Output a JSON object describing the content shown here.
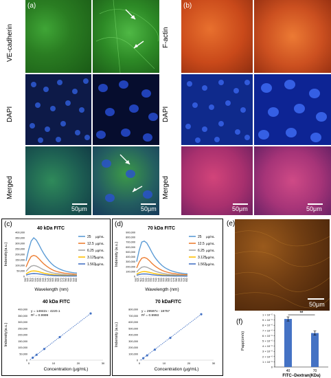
{
  "panel_a": {
    "label": "(a)",
    "rows": [
      "VE-cadherin",
      "DAPI",
      "Merged"
    ],
    "scale_bar_left": "50μm",
    "scale_bar_right": "50μm",
    "colors": {
      "ve": "#2f8a25",
      "dapi": "#1a3fb8",
      "merged": "#2a7050"
    }
  },
  "panel_b": {
    "label": "(b)",
    "rows": [
      "F-actin",
      "DAPI",
      "Merged"
    ],
    "scale_bar_left": "50μm",
    "scale_bar_right": "50μm",
    "colors": {
      "factin": "#d2521c",
      "dapi": "#1e45d0",
      "merged": "#b2357a"
    }
  },
  "panel_c": {
    "label": "(c)"
  },
  "panel_d": {
    "label": "(d)"
  },
  "panel_e": {
    "label": "(e)",
    "scale_bar": "50μm",
    "colors": {
      "bg": "#6a3a10"
    }
  },
  "panel_f": {
    "label": "(f)"
  },
  "chart_data": [
    {
      "id": "c-spectra",
      "type": "line",
      "title": "40 kDa FITC",
      "xlabel": "Wavelength (nm)",
      "ylabel": "Indensity(a.u.)",
      "x": [
        500,
        505,
        510,
        515,
        520,
        525,
        530,
        535,
        540,
        545,
        550,
        555,
        560,
        565,
        570,
        575,
        580,
        585,
        590,
        595,
        600
      ],
      "xticklabels": [
        "500",
        "505",
        "510",
        "515",
        "520",
        "525",
        "530",
        "535",
        "540",
        "545",
        "550",
        "555",
        "560",
        "565",
        "570",
        "575",
        "580",
        "585",
        "590",
        "595",
        "600"
      ],
      "ylim": [
        0,
        400000
      ],
      "yticklabels": [
        "0",
        "50,000",
        "100,000",
        "150,000",
        "200,000",
        "250,000",
        "300,000",
        "350,000",
        "400,000"
      ],
      "series": [
        {
          "name": "25",
          "unit": "μg/mL",
          "color": "#5b9bd5",
          "values": [
            140000,
            240000,
            320000,
            350000,
            330000,
            290000,
            245000,
            205000,
            170000,
            140000,
            115000,
            95000,
            80000,
            68000,
            58000,
            50000,
            44000,
            39000,
            35000,
            32000,
            30000
          ]
        },
        {
          "name": "12.5",
          "unit": "μg/mL",
          "color": "#ed7d31",
          "values": [
            85000,
            140000,
            180000,
            190000,
            182000,
            160000,
            135000,
            112000,
            93000,
            77000,
            63000,
            52000,
            44000,
            38000,
            33000,
            29000,
            26000,
            23000,
            21000,
            19000,
            18000
          ]
        },
        {
          "name": "6.25",
          "unit": "μg/mL",
          "color": "#a5a5a5",
          "values": [
            45000,
            72000,
            92000,
            98000,
            94000,
            83000,
            70000,
            58000,
            48000,
            40000,
            33000,
            28000,
            24000,
            21000,
            18000,
            16000,
            14000,
            13000,
            12000,
            11000,
            10000
          ]
        },
        {
          "name": "3.125",
          "unit": "μg/mL",
          "color": "#ffc000",
          "values": [
            22000,
            36000,
            46000,
            49000,
            47000,
            42000,
            35000,
            29000,
            24000,
            20000,
            17000,
            14000,
            12000,
            10500,
            9000,
            8000,
            7200,
            6500,
            6000,
            5500,
            5000
          ]
        },
        {
          "name": "1.563",
          "unit": "μg/mL",
          "color": "#4472c4",
          "values": [
            11000,
            18000,
            23000,
            25000,
            24000,
            21000,
            18000,
            15000,
            12000,
            10000,
            8500,
            7000,
            6000,
            5300,
            4600,
            4000,
            3600,
            3300,
            3000,
            2800,
            2600
          ]
        }
      ]
    },
    {
      "id": "c-linear",
      "type": "scatter",
      "title": "40 kDa FITC",
      "xlabel": "Concentration (μg/mL)",
      "ylabel": "Indensity(a.u.)",
      "xlim": [
        0,
        30
      ],
      "xticklabels": [
        "0",
        "10",
        "20",
        "30"
      ],
      "ylim": [
        0,
        400000
      ],
      "yticklabels": [
        "0",
        "50,000",
        "100,000",
        "150,000",
        "200,000",
        "250,000",
        "300,000",
        "350,000",
        "400,000"
      ],
      "equation": "y = 14842x - 4220.1",
      "r2": "R² = 0.9999",
      "x": [
        1.563,
        3.125,
        6.25,
        12.5,
        25
      ],
      "y": [
        19000,
        42000,
        88000,
        181000,
        367000
      ],
      "fit": {
        "slope": 14842,
        "intercept": -4220.1
      },
      "color": "#4472c4"
    },
    {
      "id": "d-spectra",
      "type": "line",
      "title": "70 kDa FITC",
      "xlabel": "Wavelength (nm)",
      "ylabel": "Indensity (a.u.)",
      "x": [
        500,
        505,
        510,
        515,
        520,
        525,
        530,
        535,
        540,
        545,
        550,
        555,
        560,
        565,
        570,
        575,
        580,
        585,
        590,
        595,
        600
      ],
      "xticklabels": [
        "500",
        "505",
        "510",
        "515",
        "520",
        "525",
        "530",
        "535",
        "540",
        "545",
        "550",
        "555",
        "560",
        "565",
        "570",
        "575",
        "580",
        "585",
        "590",
        "595",
        "600"
      ],
      "ylim": [
        0,
        900000
      ],
      "yticklabels": [
        "0",
        "100,000",
        "200,000",
        "300,000",
        "400,000",
        "500,000",
        "600,000",
        "700,000",
        "800,000",
        "900,000"
      ],
      "series": [
        {
          "name": "25",
          "unit": "μg/mL",
          "color": "#5b9bd5",
          "values": [
            300000,
            530000,
            700000,
            720000,
            680000,
            590000,
            490000,
            400000,
            330000,
            270000,
            220000,
            180000,
            150000,
            125000,
            105000,
            90000,
            78000,
            68000,
            60000,
            54000,
            50000
          ]
        },
        {
          "name": "12.5",
          "unit": "μg/mL",
          "color": "#ed7d31",
          "values": [
            170000,
            290000,
            370000,
            385000,
            365000,
            320000,
            265000,
            218000,
            180000,
            148000,
            121000,
            100000,
            84000,
            71000,
            61000,
            53000,
            46000,
            41000,
            37000,
            34000,
            32000
          ]
        },
        {
          "name": "6.25",
          "unit": "μg/mL",
          "color": "#a5a5a5",
          "values": [
            85000,
            145000,
            185000,
            195000,
            185000,
            162000,
            135000,
            111000,
            92000,
            76000,
            62000,
            52000,
            44000,
            37000,
            32000,
            28000,
            25000,
            22000,
            20000,
            18500,
            17000
          ]
        },
        {
          "name": "3.125",
          "unit": "μg/mL",
          "color": "#ffc000",
          "values": [
            42000,
            72000,
            92000,
            97000,
            92000,
            81000,
            67000,
            55000,
            46000,
            38000,
            31000,
            26000,
            22000,
            18500,
            16000,
            14000,
            12500,
            11000,
            10000,
            9200,
            8500
          ]
        },
        {
          "name": "1.563",
          "unit": "μg/mL",
          "color": "#4472c4",
          "values": [
            21000,
            36000,
            46000,
            48000,
            46000,
            40000,
            33000,
            27000,
            23000,
            19000,
            15500,
            13000,
            11000,
            9300,
            8000,
            7000,
            6200,
            5500,
            5000,
            4600,
            4200
          ]
        }
      ]
    },
    {
      "id": "d-linear",
      "type": "scatter",
      "title": "70 kDaFITC",
      "xlabel": "Concentration (μg/mL)",
      "ylabel": "Indensity (a.u.)",
      "xlim": [
        0,
        30
      ],
      "xticklabels": [
        "0",
        "10",
        "20",
        "30"
      ],
      "ylim": [
        0,
        800000
      ],
      "yticklabels": [
        "0",
        "100,000",
        "200,000",
        "300,000",
        "400,000",
        "500,000",
        "600,000",
        "700,000",
        "800,000"
      ],
      "equation": "y = 29597x - 18757",
      "r2": "R² = 0.9993",
      "x": [
        1.563,
        3.125,
        6.25,
        12.5,
        25
      ],
      "y": [
        30000,
        75000,
        165000,
        350000,
        722000
      ],
      "fit": {
        "slope": 29597,
        "intercept": -18757
      },
      "color": "#4472c4"
    },
    {
      "id": "f-papp",
      "type": "bar",
      "xlabel": "FITC−Dextran(KDa)",
      "ylabel": "Papp(cm/s)",
      "categories": [
        "40",
        "70"
      ],
      "values": [
        9.2e-06,
        6.5e-06
      ],
      "errors": [
        4e-07,
        4e-07
      ],
      "ylim": [
        0,
        1e-05
      ],
      "yticklabels": [
        "0",
        "1 × 10⁻⁶",
        "2 × 10⁻⁶",
        "3 × 10⁻⁶",
        "4 × 10⁻⁶",
        "5 × 10⁻⁶",
        "6 × 10⁻⁶",
        "7 × 10⁻⁶",
        "8 × 10⁻⁶",
        "9 × 10⁻⁶",
        "1 × 10⁻⁵"
      ],
      "significance": "**",
      "color": "#4472c4"
    }
  ]
}
